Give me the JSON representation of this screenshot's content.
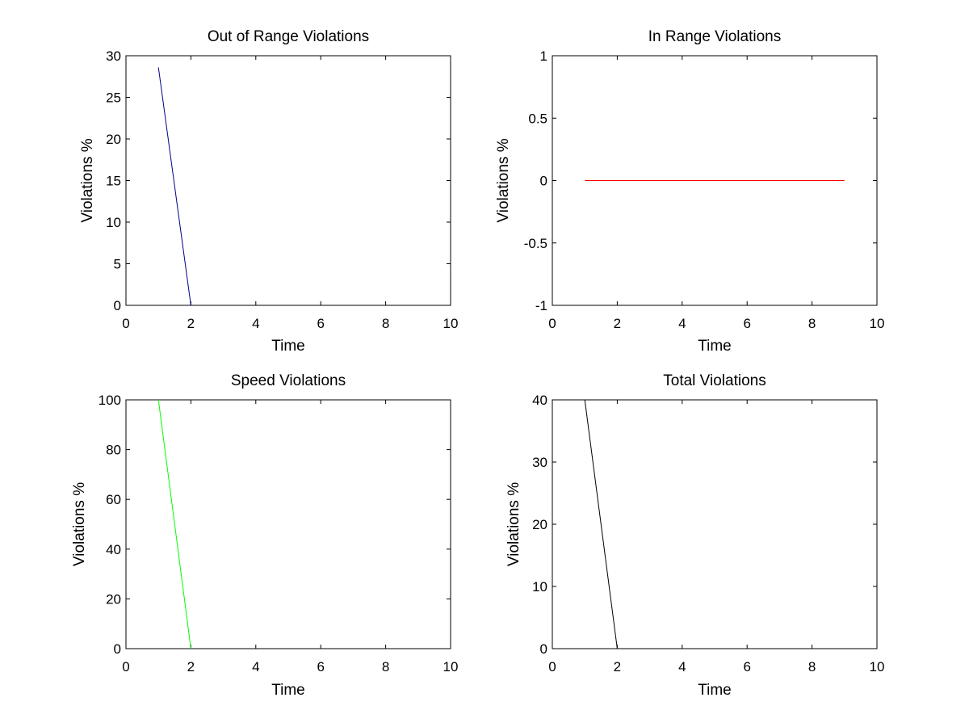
{
  "chart_data": [
    {
      "type": "line",
      "title": "Out of Range Violations",
      "xlabel": "Time",
      "ylabel": "Violations %",
      "xlim": [
        0,
        10
      ],
      "ylim": [
        0,
        30
      ],
      "xticks": [
        0,
        2,
        4,
        6,
        8,
        10
      ],
      "yticks": [
        0,
        5,
        10,
        15,
        20,
        25,
        30
      ],
      "grid": false,
      "series": [
        {
          "color": "#00008b",
          "x": [
            1,
            2
          ],
          "y": [
            28.6,
            0
          ]
        }
      ]
    },
    {
      "type": "line",
      "title": "In Range Violations",
      "xlabel": "Time",
      "ylabel": "Violations %",
      "xlim": [
        0,
        10
      ],
      "ylim": [
        -1,
        1
      ],
      "xticks": [
        0,
        2,
        4,
        6,
        8,
        10
      ],
      "yticks": [
        -1,
        -0.5,
        0,
        0.5,
        1
      ],
      "grid": false,
      "series": [
        {
          "color": "#ff0000",
          "x": [
            1,
            2,
            3,
            4,
            5,
            6,
            7,
            8,
            9
          ],
          "y": [
            0,
            0,
            0,
            0,
            0,
            0,
            0,
            0,
            0
          ]
        }
      ]
    },
    {
      "type": "line",
      "title": "Speed Violations",
      "xlabel": "Time",
      "ylabel": "Violations %",
      "xlim": [
        0,
        10
      ],
      "ylim": [
        0,
        100
      ],
      "xticks": [
        0,
        2,
        4,
        6,
        8,
        10
      ],
      "yticks": [
        0,
        20,
        40,
        60,
        80,
        100
      ],
      "grid": false,
      "series": [
        {
          "color": "#00ff00",
          "x": [
            1,
            2
          ],
          "y": [
            100,
            0
          ]
        }
      ]
    },
    {
      "type": "line",
      "title": "Total Violations",
      "xlabel": "Time",
      "ylabel": "Violations %",
      "xlim": [
        0,
        10
      ],
      "ylim": [
        0,
        40
      ],
      "xticks": [
        0,
        2,
        4,
        6,
        8,
        10
      ],
      "yticks": [
        0,
        10,
        20,
        30,
        40
      ],
      "grid": false,
      "series": [
        {
          "color": "#000000",
          "x": [
            1,
            2
          ],
          "y": [
            40,
            0
          ]
        }
      ]
    }
  ]
}
